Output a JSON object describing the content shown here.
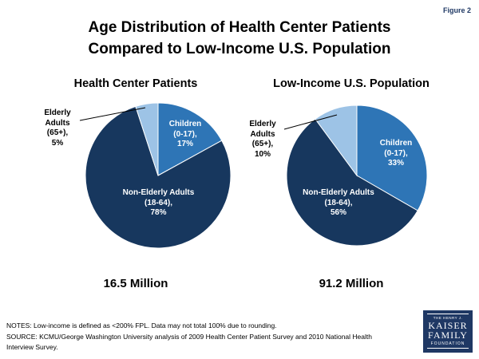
{
  "figure_label": "Figure 2",
  "title": "Age Distribution of Health Center Patients\nCompared to Low-Income U.S. Population",
  "notes": "NOTES: Low-income is defined as <200% FPL. Data may not total 100% due to rounding.\nSOURCE: KCMU/George Washington University analysis of 2009 Health Center Patient Survey and 2010 National Health\nInterview Survey.",
  "logo": {
    "line1": "THE HENRY J.",
    "line2": "KAISER",
    "line3": "FAMILY",
    "line4": "FOUNDATION"
  },
  "colors": {
    "dark_blue": "#17375E",
    "medium_blue": "#2E75B6",
    "light_blue": "#9DC3E6",
    "navy_text": "#1F3864"
  },
  "chart_data": [
    {
      "type": "pie",
      "title": "Health Center Patients",
      "total_label": "16.5 Million",
      "legend_position": "none",
      "start_angle_deg": 0,
      "direction": "clockwise",
      "slices": [
        {
          "name": "Children (0-17)",
          "value": 17,
          "color": "#2E75B6",
          "label": "Children\n(0-17),\n17%",
          "label_outside": false
        },
        {
          "name": "Non-Elderly Adults (18-64)",
          "value": 78,
          "color": "#17375E",
          "label": "Non-Elderly Adults\n(18-64),\n78%",
          "label_outside": false
        },
        {
          "name": "Elderly Adults (65+)",
          "value": 5,
          "color": "#9DC3E6",
          "label": "Elderly\nAdults\n(65+),\n5%",
          "label_outside": true
        }
      ]
    },
    {
      "type": "pie",
      "title": "Low-Income U.S. Population",
      "total_label": "91.2 Million",
      "legend_position": "none",
      "start_angle_deg": 0,
      "direction": "clockwise",
      "slices": [
        {
          "name": "Children (0-17)",
          "value": 33,
          "color": "#2E75B6",
          "label": "Children\n(0-17),\n33%",
          "label_outside": false
        },
        {
          "name": "Non-Elderly Adults (18-64)",
          "value": 56,
          "color": "#17375E",
          "label": "Non-Elderly Adults\n(18-64),\n56%",
          "label_outside": false
        },
        {
          "name": "Elderly Adults (65+)",
          "value": 10,
          "color": "#9DC3E6",
          "label": "Elderly\nAdults\n(65+),\n10%",
          "label_outside": true
        }
      ]
    }
  ]
}
